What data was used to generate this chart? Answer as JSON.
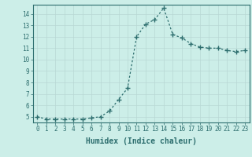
{
  "x": [
    0,
    1,
    2,
    3,
    4,
    5,
    6,
    7,
    8,
    9,
    10,
    11,
    12,
    13,
    14,
    15,
    16,
    17,
    18,
    19,
    20,
    21,
    22,
    23
  ],
  "y": [
    5.0,
    4.8,
    4.8,
    4.8,
    4.8,
    4.8,
    4.9,
    5.0,
    5.5,
    6.5,
    7.5,
    12.0,
    13.1,
    13.5,
    14.5,
    12.2,
    11.9,
    11.4,
    11.1,
    11.0,
    11.0,
    10.8,
    10.7,
    10.8
  ],
  "line_color": "#2d6e6e",
  "marker": "+",
  "marker_size": 4.0,
  "bg_color": "#cceee8",
  "grid_color": "#b8d8d4",
  "xlabel": "Humidex (Indice chaleur)",
  "xlim": [
    -0.5,
    23.5
  ],
  "ylim": [
    4.5,
    14.8
  ],
  "yticks": [
    5,
    6,
    7,
    8,
    9,
    10,
    11,
    12,
    13,
    14
  ],
  "xticks": [
    0,
    1,
    2,
    3,
    4,
    5,
    6,
    7,
    8,
    9,
    10,
    11,
    12,
    13,
    14,
    15,
    16,
    17,
    18,
    19,
    20,
    21,
    22,
    23
  ],
  "tick_fontsize": 5.5,
  "xlabel_fontsize": 7.0,
  "axis_color": "#2d6e6e",
  "line_width": 0.9
}
